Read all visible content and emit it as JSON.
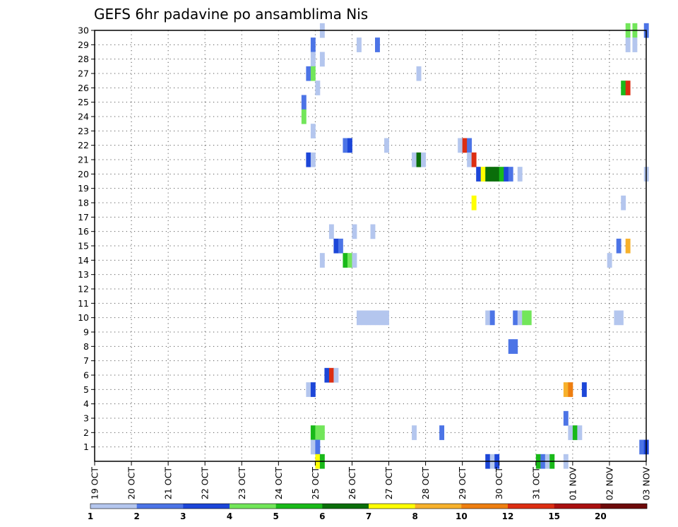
{
  "chart_data": {
    "type": "heatmap",
    "title": "GEFS 6hr padavine po ansamblima Nis",
    "x_tick_labels": [
      "19 OCT",
      "20 OCT",
      "21 OCT",
      "22 OCT",
      "23 OCT",
      "24 OCT",
      "25 OCT",
      "26 OCT",
      "27 OCT",
      "28 OCT",
      "29 OCT",
      "30 OCT",
      "31 OCT",
      "01 NOV",
      "02 NOV",
      "03 NOV"
    ],
    "y_tick_labels": [
      "1",
      "2",
      "3",
      "4",
      "5",
      "6",
      "7",
      "8",
      "9",
      "10",
      "11",
      "12",
      "13",
      "14",
      "15",
      "16",
      "17",
      "18",
      "19",
      "20",
      "21",
      "22",
      "23",
      "24",
      "25",
      "26",
      "27",
      "28",
      "29",
      "30"
    ],
    "x_range": [
      0,
      60
    ],
    "y_range": [
      0,
      30
    ],
    "grid": true,
    "legend": {
      "position": "bottom",
      "labels": [
        "1",
        "2",
        "3",
        "4",
        "5",
        "6",
        "7",
        "8",
        "10",
        "12",
        "15",
        "20"
      ],
      "colors": [
        "#b4c6ee",
        "#4c74e6",
        "#1c46d8",
        "#72e65a",
        "#19b919",
        "#0a6e0a",
        "#ffff00",
        "#f7b12c",
        "#ee7e10",
        "#dc2e12",
        "#aa1010",
        "#6e0a0a"
      ]
    },
    "cells": [
      {
        "m": 30,
        "t": 24.5,
        "c": 0
      },
      {
        "m": 30,
        "t": 57.75,
        "c": 3
      },
      {
        "m": 30,
        "t": 58.5,
        "c": 3
      },
      {
        "m": 30,
        "t": 59.75,
        "c": 1
      },
      {
        "m": 29,
        "t": 23.5,
        "c": 1
      },
      {
        "m": 29,
        "t": 28.5,
        "c": 0
      },
      {
        "m": 29,
        "t": 30.5,
        "c": 1
      },
      {
        "m": 29,
        "t": 57.75,
        "c": 0
      },
      {
        "m": 29,
        "t": 58.5,
        "c": 0
      },
      {
        "m": 28,
        "t": 23.5,
        "c": 0
      },
      {
        "m": 28,
        "t": 24.5,
        "c": 0
      },
      {
        "m": 27,
        "t": 23,
        "c": 1
      },
      {
        "m": 27,
        "t": 23.5,
        "c": 3
      },
      {
        "m": 27,
        "t": 35,
        "c": 0
      },
      {
        "m": 26,
        "t": 24,
        "c": 0
      },
      {
        "m": 26,
        "t": 57.25,
        "c": 4
      },
      {
        "m": 26,
        "t": 57.75,
        "c": 9
      },
      {
        "m": 25,
        "t": 22.5,
        "c": 1
      },
      {
        "m": 24,
        "t": 22.5,
        "c": 3
      },
      {
        "m": 23,
        "t": 23.5,
        "c": 0
      },
      {
        "m": 22,
        "t": 27,
        "c": 1
      },
      {
        "m": 22,
        "t": 27.5,
        "c": 2
      },
      {
        "m": 22,
        "t": 31.5,
        "c": 0
      },
      {
        "m": 22,
        "t": 39.5,
        "c": 0
      },
      {
        "m": 22,
        "t": 40,
        "c": 9
      },
      {
        "m": 22,
        "t": 40.5,
        "c": 1
      },
      {
        "m": 21,
        "t": 23,
        "c": 2
      },
      {
        "m": 21,
        "t": 23.5,
        "c": 0
      },
      {
        "m": 21,
        "t": 34.5,
        "c": 0
      },
      {
        "m": 21,
        "t": 35,
        "c": 5
      },
      {
        "m": 21,
        "t": 35.5,
        "c": 0
      },
      {
        "m": 21,
        "t": 40.5,
        "c": 0
      },
      {
        "m": 21,
        "t": 41,
        "c": 9
      },
      {
        "m": 20,
        "t": 41.5,
        "c": 2
      },
      {
        "m": 20,
        "t": 42,
        "c": 6
      },
      {
        "m": 20,
        "t": 42.5,
        "c": 5
      },
      {
        "m": 20,
        "t": 43,
        "c": 5
      },
      {
        "m": 20,
        "t": 43.5,
        "c": 5
      },
      {
        "m": 20,
        "t": 44,
        "c": 4
      },
      {
        "m": 20,
        "t": 44.5,
        "c": 2
      },
      {
        "m": 20,
        "t": 45,
        "c": 1
      },
      {
        "m": 20,
        "t": 46,
        "c": 0
      },
      {
        "m": 20,
        "t": 59.75,
        "c": 0
      },
      {
        "m": 18,
        "t": 41,
        "c": 6
      },
      {
        "m": 18,
        "t": 57.25,
        "c": 0
      },
      {
        "m": 16,
        "t": 25.5,
        "c": 0
      },
      {
        "m": 16,
        "t": 28,
        "c": 0
      },
      {
        "m": 16,
        "t": 30,
        "c": 0
      },
      {
        "m": 15,
        "t": 26,
        "c": 2
      },
      {
        "m": 15,
        "t": 26.5,
        "c": 1
      },
      {
        "m": 15,
        "t": 56.75,
        "c": 1
      },
      {
        "m": 15,
        "t": 57.75,
        "c": 7
      },
      {
        "m": 14,
        "t": 24.5,
        "c": 0
      },
      {
        "m": 14,
        "t": 27,
        "c": 4
      },
      {
        "m": 14,
        "t": 27.5,
        "c": 3
      },
      {
        "m": 14,
        "t": 28,
        "c": 0
      },
      {
        "m": 14,
        "t": 55.75,
        "c": 0
      },
      {
        "m": 10,
        "t": 28.5,
        "c": 0
      },
      {
        "m": 10,
        "t": 29,
        "c": 0
      },
      {
        "m": 10,
        "t": 29.5,
        "c": 0
      },
      {
        "m": 10,
        "t": 30,
        "c": 0
      },
      {
        "m": 10,
        "t": 30.5,
        "c": 0
      },
      {
        "m": 10,
        "t": 31,
        "c": 0
      },
      {
        "m": 10,
        "t": 31.5,
        "c": 0
      },
      {
        "m": 10,
        "t": 42.5,
        "c": 0
      },
      {
        "m": 10,
        "t": 43,
        "c": 1
      },
      {
        "m": 10,
        "t": 45.5,
        "c": 1
      },
      {
        "m": 10,
        "t": 46,
        "c": 0
      },
      {
        "m": 10,
        "t": 46.5,
        "c": 3
      },
      {
        "m": 10,
        "t": 47,
        "c": 3
      },
      {
        "m": 10,
        "t": 56.5,
        "c": 0
      },
      {
        "m": 10,
        "t": 57,
        "c": 0
      },
      {
        "m": 8,
        "t": 45,
        "c": 1
      },
      {
        "m": 8,
        "t": 45.5,
        "c": 1
      },
      {
        "m": 6,
        "t": 25,
        "c": 2
      },
      {
        "m": 6,
        "t": 25.5,
        "c": 9
      },
      {
        "m": 6,
        "t": 26,
        "c": 0
      },
      {
        "m": 5,
        "t": 23,
        "c": 0
      },
      {
        "m": 5,
        "t": 23.5,
        "c": 2
      },
      {
        "m": 5,
        "t": 51,
        "c": 7
      },
      {
        "m": 5,
        "t": 51.5,
        "c": 8
      },
      {
        "m": 5,
        "t": 53,
        "c": 2
      },
      {
        "m": 3,
        "t": 51,
        "c": 1
      },
      {
        "m": 2,
        "t": 23.5,
        "c": 4
      },
      {
        "m": 2,
        "t": 24,
        "c": 3
      },
      {
        "m": 2,
        "t": 24.5,
        "c": 3
      },
      {
        "m": 2,
        "t": 34.5,
        "c": 0
      },
      {
        "m": 2,
        "t": 37.5,
        "c": 1
      },
      {
        "m": 2,
        "t": 51.5,
        "c": 0
      },
      {
        "m": 2,
        "t": 52,
        "c": 4
      },
      {
        "m": 2,
        "t": 52.5,
        "c": 0
      },
      {
        "m": 1,
        "t": 23.5,
        "c": 0
      },
      {
        "m": 1,
        "t": 24,
        "c": 1
      },
      {
        "m": 1,
        "t": 59.25,
        "c": 1
      },
      {
        "m": 1,
        "t": 59.75,
        "c": 2
      },
      {
        "m": 0,
        "t": 24,
        "c": 6
      },
      {
        "m": 0,
        "t": 24.5,
        "c": 4
      },
      {
        "m": 0,
        "t": 42.5,
        "c": 2
      },
      {
        "m": 0,
        "t": 43,
        "c": 0
      },
      {
        "m": 0,
        "t": 43.5,
        "c": 2
      },
      {
        "m": 0,
        "t": 48,
        "c": 4
      },
      {
        "m": 0,
        "t": 48.5,
        "c": 1
      },
      {
        "m": 0,
        "t": 49,
        "c": 0
      },
      {
        "m": 0,
        "t": 49.5,
        "c": 4
      },
      {
        "m": 0,
        "t": 51,
        "c": 0
      }
    ]
  }
}
